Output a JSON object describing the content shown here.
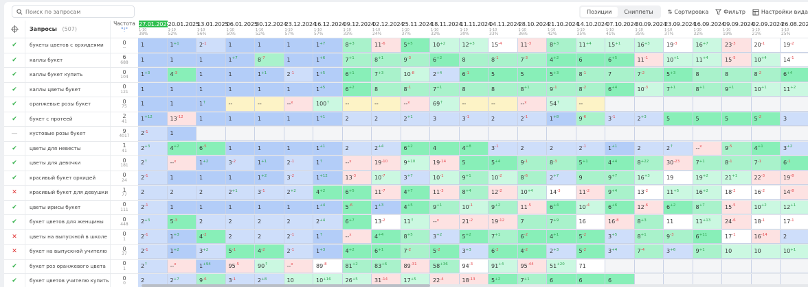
{
  "search": {
    "placeholder": "Поиск по запросам"
  },
  "toolbar": {
    "positions": "Позиции",
    "snippets": "Сниппеты",
    "sort": "Сортировка",
    "filter": "Фильтр",
    "view": "Настройки вида"
  },
  "header": {
    "queries": "Запросы",
    "count": "(507)",
    "freq": "Частота",
    "freq_sub": "\"!\"",
    "range": "1-10"
  },
  "dates": [
    {
      "d": "27.01.2025",
      "p": "38%"
    },
    {
      "d": "20.01.2025",
      "p": "52%"
    },
    {
      "d": "13.01.2025",
      "p": "56%"
    },
    {
      "d": "06.01.2025",
      "p": "50%"
    },
    {
      "d": "30.12.2024",
      "p": "52%"
    },
    {
      "d": "23.12.2024",
      "p": "57%"
    },
    {
      "d": "16.12.2024",
      "p": "57%"
    },
    {
      "d": "09.12.2024",
      "p": "33%"
    },
    {
      "d": "02.12.2024",
      "p": "24%"
    },
    {
      "d": "25.11.2024",
      "p": "37%"
    },
    {
      "d": "18.11.2024",
      "p": "32%"
    },
    {
      "d": "11.11.2024",
      "p": "30%"
    },
    {
      "d": "04.11.2024",
      "p": "33%"
    },
    {
      "d": "28.10.2024",
      "p": "36%"
    },
    {
      "d": "21.10.2024",
      "p": "42%"
    },
    {
      "d": "14.10.2024",
      "p": "35%"
    },
    {
      "d": "07.10.2024",
      "p": "41%"
    },
    {
      "d": "30.09.2024",
      "p": "35%"
    },
    {
      "d": "23.09.2024",
      "p": "37%"
    },
    {
      "d": "16.09.2024",
      "p": "32%"
    },
    {
      "d": "09.09.2024",
      "p": "19%"
    },
    {
      "d": "02.09.2024",
      "p": "21%"
    },
    {
      "d": "26.08.2024",
      "p": "25%"
    }
  ],
  "colors": {
    "B": "#b3cdf8",
    "L": "#cedefa",
    "G": "#88efb8",
    "M": "#a9f2cb",
    "P": "#cbf8e1",
    "W": "#ffffff",
    "R": "#fde2e2",
    "Y": "#fdf3c6",
    "E": "#f4f5f7",
    "active_date": "#2fbf4f"
  },
  "rows": [
    {
      "q": "букеты цветов с орхидеями",
      "s": "ok",
      "f": "0",
      "f2": "--",
      "c": [
        "1",
        "1 +1",
        "2 -1",
        "1",
        "1",
        "1",
        "1 +7",
        "8 +3",
        "11 -6 R",
        "5 +5",
        "10 +2",
        "12 +3",
        "15 -4 W",
        "11 -3 R",
        "8 +3",
        "11 +4",
        "15 +1",
        "16 +3",
        "19 -3 W",
        "16 +7",
        "23 -3 R",
        "20 -1 W",
        "19 -2 W"
      ]
    },
    {
      "q": "каллы букет",
      "s": "ok",
      "f": "6",
      "f2": "688",
      "c": [
        "1",
        "1",
        "1",
        "1 +7",
        "8 -7",
        "1",
        "1 +6",
        "7 +1",
        "8 +1",
        "9 -3",
        "6 +2",
        "8",
        "8 -1",
        "7 -3",
        "4 +2",
        "6",
        "6 +5",
        "11 -1 R",
        "10 +1",
        "11 +4",
        "15 -5 R",
        "10 +4",
        "14 -1 W"
      ]
    },
    {
      "q": "каллы букет купить",
      "s": "ok",
      "f": "0",
      "f2": "104",
      "c": [
        "1 +3",
        "4 -3",
        "1",
        "1",
        "1 +1",
        "2 -1",
        "1 +5",
        "6 +1",
        "7 +3",
        "10 -8",
        "2 +4",
        "6 -1",
        "5",
        "5",
        "5 +3",
        "8 -1",
        "7",
        "7 -2",
        "5 +3",
        "8",
        "8",
        "8 -2",
        "6 +4"
      ]
    },
    {
      "q": "каллы цветы букет",
      "s": "ok",
      "f": "0",
      "f2": "121",
      "c": [
        "1",
        "1",
        "1",
        "1",
        "1",
        "1",
        "1 +5",
        "6 +2",
        "8",
        "8 -1",
        "7 +1",
        "8",
        "8",
        "8 +1",
        "9 -1",
        "8 -2",
        "6 +4",
        "10 -3",
        "7 +1",
        "8 +1",
        "9 +1",
        "10 +1",
        "11 +2"
      ]
    },
    {
      "q": "оранжевые розы букет",
      "s": "ok",
      "f": "0",
      "f2": "75",
      "c": [
        "1",
        "1",
        "1 ↑",
        "-- Y",
        "-- Y",
        "-- x R",
        "100 ↑ P",
        "-- Y",
        "-- Y",
        "-- x R",
        "69 ↑ P",
        "-- Y",
        "-- Y",
        "-- x R",
        "54 ↑ P",
        "-- Y",
        "",
        "",
        "",
        "",
        "",
        "",
        ""
      ]
    },
    {
      "q": "букет с протеей",
      "s": "ok",
      "f": "2",
      "f2": "41",
      "c": [
        "1 +12",
        "13 -12 R",
        "1",
        "1",
        "1",
        "1",
        "1 +1",
        "2",
        "2",
        "2 +1",
        "3",
        "3 -1",
        "2",
        "2 -1",
        "1 +8",
        "9 -6",
        "3 -1",
        "2 +3",
        "5",
        "5",
        "5",
        "5 -2",
        "3"
      ]
    },
    {
      "q": "кустовые розы букет",
      "s": "dash",
      "f": "9",
      "f2": "4017",
      "c": [
        "2 -1",
        "1",
        "",
        "",
        "",
        "",
        "",
        "",
        "",
        "",
        "",
        "",
        "",
        "",
        "",
        "",
        "",
        "",
        "",
        "",
        "",
        "",
        ""
      ]
    },
    {
      "q": "цветы для невесты",
      "s": "ok",
      "f": "1",
      "f2": "41",
      "c": [
        "2 +3",
        "4 +2",
        "6 -5",
        "1",
        "1",
        "1",
        "1 +1",
        "2",
        "2 +4",
        "6 +2",
        "4",
        "4 +8",
        "3 -1",
        "2",
        "2",
        "2 -1",
        "1 +1",
        "2",
        "2 ↑",
        "-- x R",
        "9 -5",
        "4 +1",
        "3 +2"
      ]
    },
    {
      "q": "цветы для девочки",
      "s": "ok",
      "f": "0",
      "f2": "181",
      "c": [
        "2 ↑",
        "-- x R",
        "1 +2",
        "3 -2",
        "1 +1",
        "2 -1",
        "1 ↑",
        "-- x R",
        "19 -10 R",
        "9 +10 P",
        "19 -14 R",
        "5",
        "5 +4",
        "9 -1",
        "8 -3",
        "5 +1",
        "4 +4",
        "8 +22",
        "30 -23 R",
        "7 +1",
        "8 -1",
        "7 -1",
        "6 -1"
      ]
    },
    {
      "q": "красивый букет орхидей",
      "s": "ok",
      "f": "0",
      "f2": "24",
      "c": [
        "2 -1",
        "1",
        "1",
        "1",
        "1 +2",
        "3 -2",
        "1 +12",
        "13 -3 R",
        "10 -7",
        "3 +7",
        "10 -1",
        "9 +1",
        "10 -2",
        "8 -6",
        "2 +7",
        "9",
        "9 +7",
        "16 +3",
        "19 W",
        "19 +2",
        "21 +1",
        "22 -3 R",
        "19 -8 R"
      ]
    },
    {
      "q": "красивый букет для девушки",
      "s": "no",
      "f": "1",
      "f2": "77",
      "c": [
        "2",
        "2",
        "2",
        "2 +1",
        "3 -1",
        "2 +2",
        "4 +2",
        "6 +5",
        "11 -7 R",
        "4 +7",
        "11 -3 R",
        "8 +4",
        "12 -2 R",
        "10 +4",
        "14 -3 W",
        "11 -2 R",
        "9 +4",
        "13 -2 W",
        "11 +5",
        "16 +2",
        "18 -2 W",
        "16 -2 W",
        "14 -8 R"
      ]
    },
    {
      "q": "цветы ирисы букет",
      "s": "ok",
      "f": "0",
      "f2": "111",
      "c": [
        "2 -1",
        "1",
        "1",
        "1",
        "1",
        "1",
        "1 +4",
        "5 -6",
        "1 +3",
        "4 +5",
        "9 +1",
        "10 -1",
        "9 +2",
        "11 -5 R",
        "6 +4",
        "10 -4",
        "6 +6",
        "12 -6 R",
        "6 +2",
        "8 +7",
        "15 -5 R",
        "10 +2",
        "12 +1"
      ]
    },
    {
      "q": "букет цветов для женщины",
      "s": "ok",
      "f": "0",
      "f2": "448",
      "c": [
        "2 +3",
        "5 -3",
        "2",
        "2",
        "2",
        "2",
        "2 +4",
        "6 +7",
        "13 -2 W",
        "11 ↑",
        "-- x R",
        "21 -2 R",
        "19 -12 R",
        "7",
        "7 +9",
        "16 W",
        "16 -8 R",
        "8 +3",
        "11 W",
        "11 +13",
        "24 -6 R",
        "18 -1 W",
        "17 -1 W"
      ]
    },
    {
      "q": "цветы на выпускной в школе",
      "s": "no",
      "f": "0",
      "f2": "1",
      "c": [
        "2 -1",
        "1 +3",
        "4 -2",
        "2",
        "2",
        "2 -1",
        "1 ↑",
        "-- x R",
        "4 +4",
        "8 +5",
        "3 +2",
        "5 +2",
        "7 +1",
        "6 -2",
        "4 +1",
        "5 -2",
        "3 +5",
        "8 +1",
        "9 -3",
        "6 +11",
        "17 -1 W",
        "16 -14 R",
        "2"
      ]
    },
    {
      "q": "букет на выпускной учителю",
      "s": "no",
      "f": "0",
      "f2": "37",
      "c": [
        "2 -1",
        "1 +2",
        "3 +2",
        "5 -1",
        "4 -2",
        "2 -1",
        "1 +3",
        "4 +2",
        "6 +1",
        "7 -2",
        "5 -2",
        "3 +3",
        "6 -2",
        "4 -2",
        "2 +3",
        "5 -2",
        "3 +4",
        "7 -4",
        "3 +6",
        "9 +1",
        "10",
        "10",
        "10 +1"
      ]
    },
    {
      "q": "букет роз оранжевого цвета",
      "s": "ok",
      "f": "0",
      "f2": "1",
      "c": [
        "2 ↑",
        "-- x R",
        "1 +94",
        "95 -5 R",
        "90 ↑ P",
        "-- x R",
        "89 -8 W",
        "81 +2 M",
        "83 +6 M",
        "89 -31 R",
        "58 +36 M",
        "94 -3 W",
        "91 +4 P",
        "95 -44 R",
        "51 +20 P",
        "71 W",
        "",
        "",
        "",
        "",
        "",
        "",
        ""
      ]
    },
    {
      "q": "букет цветов учителю купить",
      "s": "ok",
      "f": "0",
      "f2": "0",
      "c": [
        "2",
        "2 +7",
        "9 -6",
        "3 -1",
        "2 +8",
        "10",
        "10 +16",
        "26 +5",
        "31 -14 R",
        "17 +5",
        "22 -4 R",
        "18 -13 R",
        "5 +2",
        "7 +1",
        "6",
        "6",
        "6",
        "",
        "",
        "",
        "",
        "",
        ""
      ]
    }
  ]
}
